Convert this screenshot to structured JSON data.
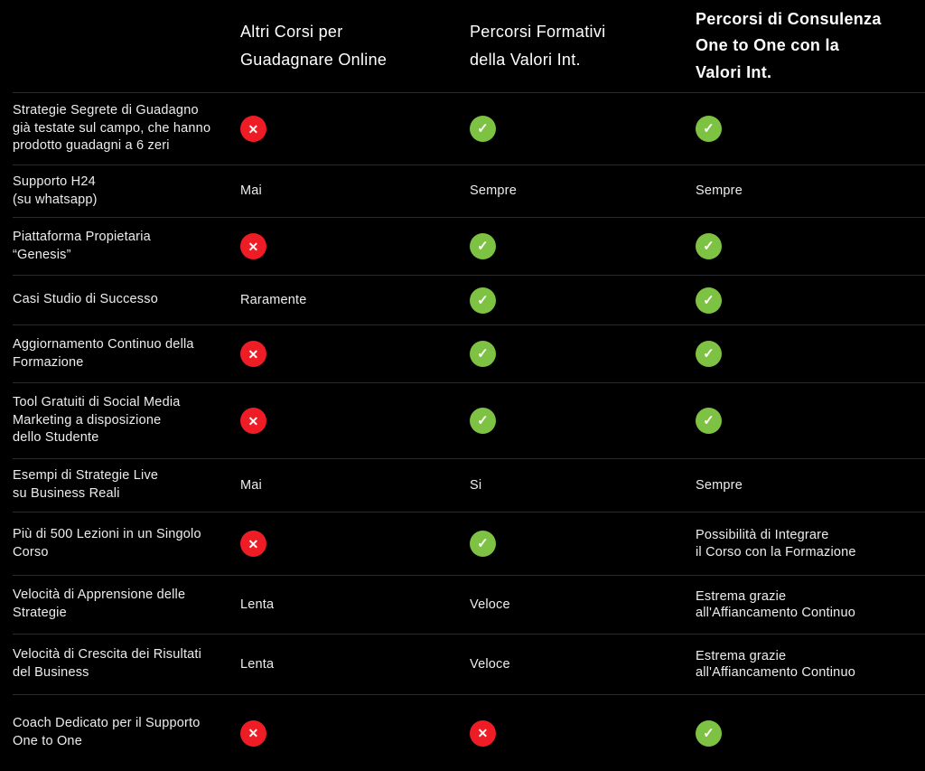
{
  "colors": {
    "background": "#000000",
    "text": "#ededed",
    "header_text": "#ffffff",
    "divider": "#2b2b2b",
    "cross_red": "#ee1c25",
    "check_green": "#7dc242"
  },
  "icons": {
    "cross_glyph": "✕",
    "check_glyph": "✓"
  },
  "header": {
    "columns": [
      {
        "id": "feature",
        "label": ""
      },
      {
        "id": "altri-corsi",
        "label": "Altri Corsi per\nGuadagnare Online"
      },
      {
        "id": "percorsi-formativi",
        "label": "Percorsi Formativi\ndella Valori Int."
      },
      {
        "id": "consulenza-one-to-one",
        "label": "Percorsi di Consulenza\nOne to One con la\nValori Int."
      }
    ]
  },
  "rows": [
    {
      "feature": "Strategie Segrete di Guadagno\ngià testate sul campo, che hanno\nprodotto guadagni a 6 zeri",
      "cells": [
        {
          "type": "cross"
        },
        {
          "type": "check"
        },
        {
          "type": "check"
        }
      ]
    },
    {
      "feature": "Supporto H24\n(su whatsapp)",
      "cells": [
        {
          "type": "text",
          "text": "Mai"
        },
        {
          "type": "text",
          "text": "Sempre"
        },
        {
          "type": "text",
          "text": "Sempre"
        }
      ]
    },
    {
      "feature": "Piattaforma Propietaria\n“Genesis”",
      "cells": [
        {
          "type": "cross"
        },
        {
          "type": "check"
        },
        {
          "type": "check"
        }
      ]
    },
    {
      "feature": "Casi Studio di Successo",
      "cells": [
        {
          "type": "text",
          "text": "Raramente"
        },
        {
          "type": "check"
        },
        {
          "type": "check"
        }
      ]
    },
    {
      "feature": "Aggiornamento Continuo della\nFormazione",
      "cells": [
        {
          "type": "cross"
        },
        {
          "type": "check"
        },
        {
          "type": "check"
        }
      ]
    },
    {
      "feature": "Tool Gratuiti di Social Media\nMarketing a disposizione\ndello Studente",
      "cells": [
        {
          "type": "cross"
        },
        {
          "type": "check"
        },
        {
          "type": "check"
        }
      ]
    },
    {
      "feature": "Esempi di Strategie Live\nsu Business Reali",
      "cells": [
        {
          "type": "text",
          "text": "Mai"
        },
        {
          "type": "text",
          "text": "Si"
        },
        {
          "type": "text",
          "text": "Sempre"
        }
      ]
    },
    {
      "feature": "Più di 500 Lezioni in un Singolo\nCorso",
      "cells": [
        {
          "type": "cross"
        },
        {
          "type": "check"
        },
        {
          "type": "text",
          "text": "Possibilità di Integrare\nil Corso con la Formazione"
        }
      ]
    },
    {
      "feature": "Velocità di Apprensione delle\nStrategie",
      "cells": [
        {
          "type": "text",
          "text": "Lenta"
        },
        {
          "type": "text",
          "text": "Veloce"
        },
        {
          "type": "text",
          "text": "Estrema grazie\nall'Affiancamento Continuo"
        }
      ]
    },
    {
      "feature": "Velocità di Crescita dei Risultati\ndel Business",
      "cells": [
        {
          "type": "text",
          "text": "Lenta"
        },
        {
          "type": "text",
          "text": "Veloce"
        },
        {
          "type": "text",
          "text": "Estrema grazie\nall'Affiancamento Continuo"
        }
      ]
    },
    {
      "feature": "Coach Dedicato per il Supporto\nOne to One",
      "cells": [
        {
          "type": "cross"
        },
        {
          "type": "cross"
        },
        {
          "type": "check"
        }
      ]
    }
  ]
}
